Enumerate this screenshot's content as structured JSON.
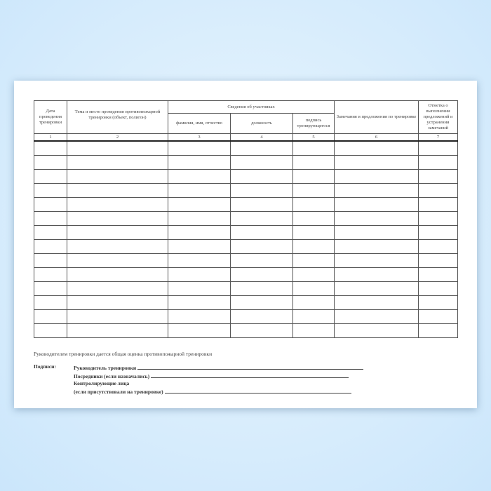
{
  "table": {
    "headers": {
      "date": "Дата проведения тренировки",
      "topic": "Тема и место проведения противопожарной тренировки (объект, полигон)",
      "participants": "Сведения об участниках",
      "name": "фамилия, имя, отчество",
      "position": "должность",
      "signature": "подпись тренирующегося",
      "remarks": "Замечания и предложения по тренировке",
      "mark": "Отметка о выполнении предложений и устранении замечаний"
    },
    "column_numbers": [
      "1",
      "2",
      "3",
      "4",
      "5",
      "6",
      "7"
    ],
    "empty_rows": 14
  },
  "note": "Руководителем тренировки дается общая оценка противопожарной тренировки",
  "signatures": {
    "label": "Подписи:",
    "leader": "Руководитель тренировки",
    "mediators": "Посредники (если назначались)",
    "controllers": "Контролирующие лица",
    "controllers_note": "(если присутствовали на тренировке)"
  }
}
